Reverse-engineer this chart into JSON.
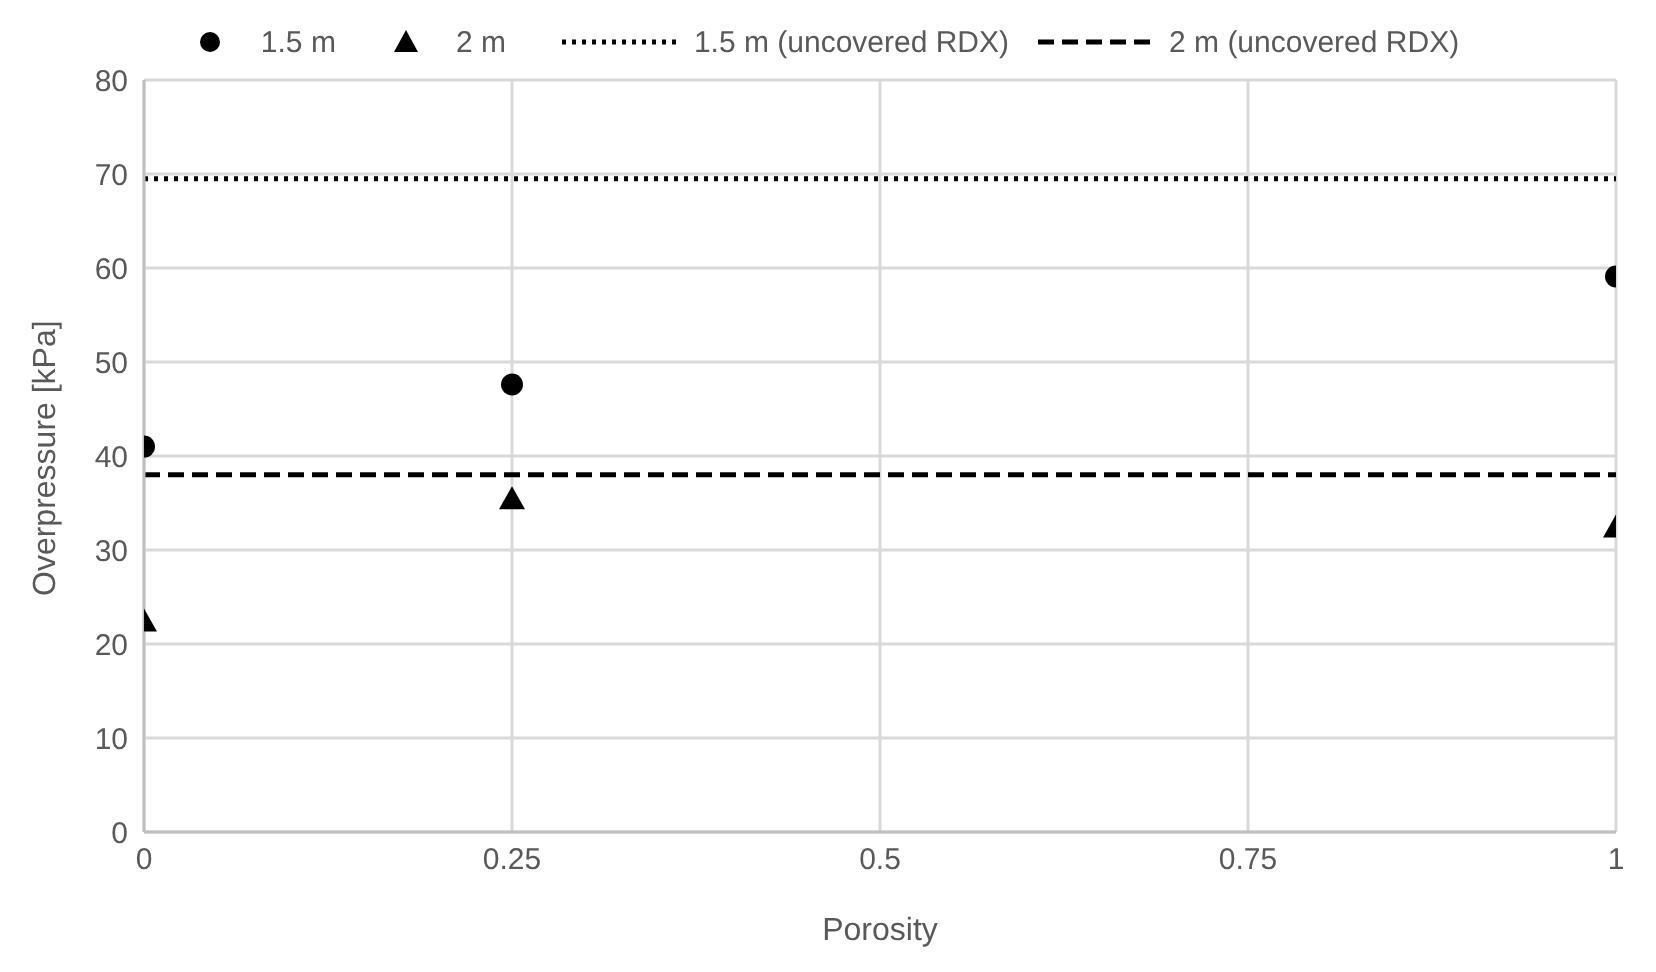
{
  "chart_data": {
    "type": "scatter",
    "xlabel": "Porosity",
    "ylabel": "Overpressure [kPa]",
    "x": [
      0,
      0.25,
      1
    ],
    "series": [
      {
        "name": "1.5 m",
        "color": "#000000",
        "marker": "circle",
        "values": [
          41,
          47.6,
          59.1
        ]
      },
      {
        "name": "2 m",
        "color": "#000000",
        "marker": "triangle",
        "values": [
          22.4,
          35.4,
          32.4
        ]
      }
    ],
    "ref_lines": [
      {
        "axis": "y",
        "value": 69.5,
        "label": "1.5 m (uncovered RDX)",
        "color": "#000000",
        "line_style": "dotted"
      },
      {
        "axis": "y",
        "value": 38,
        "label": "2 m (uncovered RDX)",
        "color": "#000000",
        "line_style": "dashed"
      }
    ],
    "xlim": [
      0,
      1
    ],
    "xticks": [
      0,
      0.25,
      0.5,
      0.75,
      1
    ],
    "ylim": [
      0,
      80
    ],
    "yticks": [
      0,
      10,
      20,
      30,
      40,
      50,
      60,
      70,
      80
    ],
    "grid": true,
    "legend": "top"
  }
}
